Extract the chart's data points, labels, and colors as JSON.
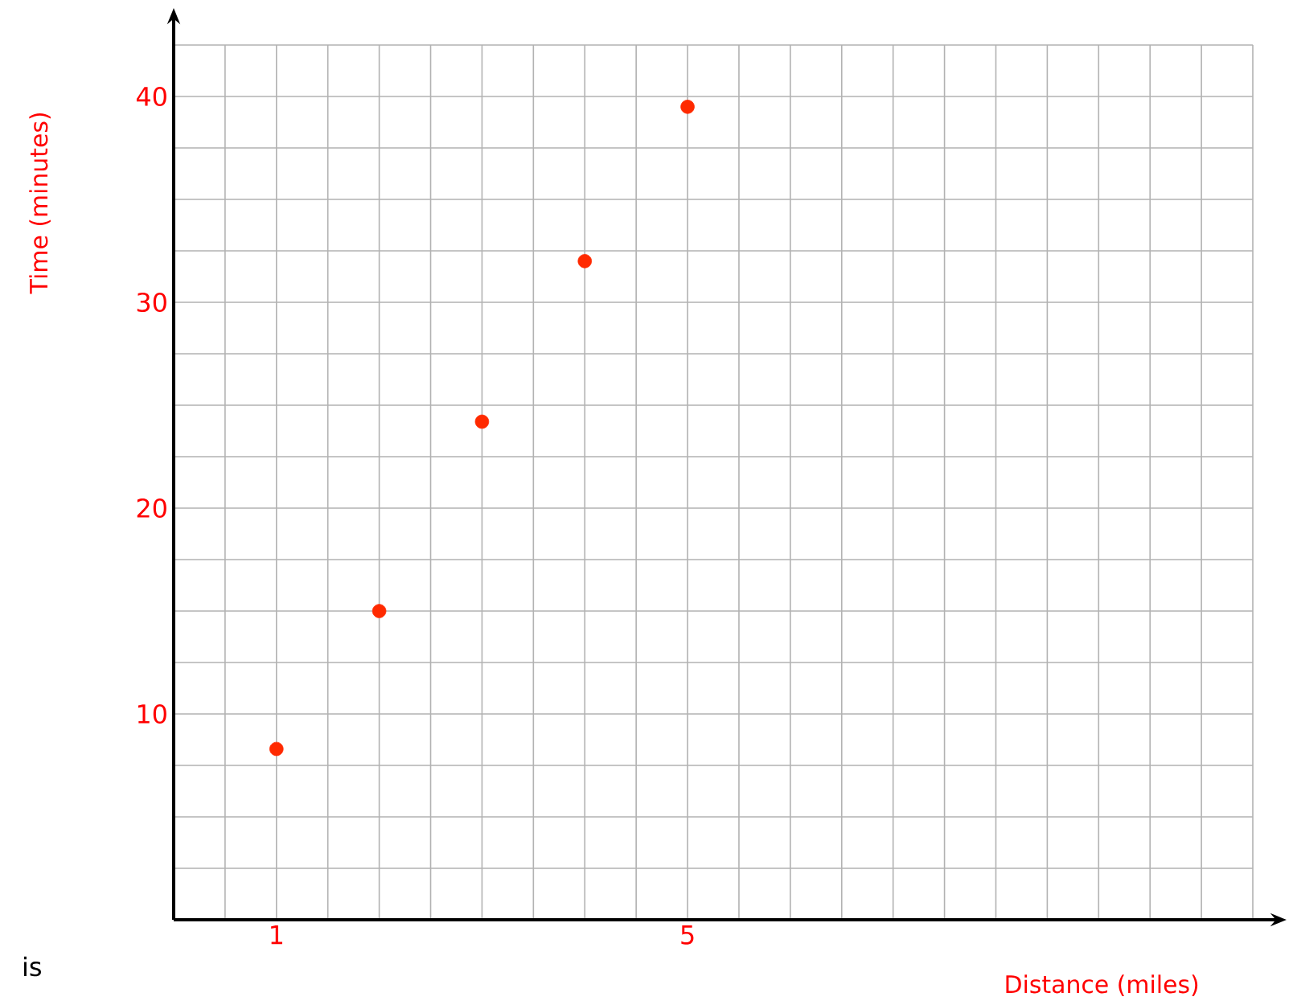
{
  "chart_data": {
    "type": "scatter",
    "xlabel": "Distance (miles)",
    "ylabel": "Time (minutes)",
    "x": [
      1,
      2,
      3,
      4,
      5
    ],
    "series": [
      {
        "color": "#ff2a00",
        "values": [
          8.3,
          15,
          24.2,
          32,
          39.5
        ]
      }
    ],
    "xlim": [
      0,
      10.5
    ],
    "xticks": [
      {
        "value": 0.5,
        "label": null
      },
      1,
      {
        "value": 1.5,
        "label": null
      },
      {
        "value": 2,
        "label": null
      },
      {
        "value": 2.5,
        "label": null
      },
      {
        "value": 3,
        "label": null
      },
      {
        "value": 3.5,
        "label": null
      },
      {
        "value": 4,
        "label": null
      },
      {
        "value": 4.5,
        "label": null
      },
      5,
      {
        "value": 5.5,
        "label": null
      },
      {
        "value": 6,
        "label": null
      },
      {
        "value": 6.5,
        "label": null
      },
      {
        "value": 7,
        "label": null
      },
      {
        "value": 7.5,
        "label": null
      },
      {
        "value": 8,
        "label": null
      },
      {
        "value": 8.5,
        "label": null
      },
      {
        "value": 9,
        "label": null
      },
      {
        "value": 9.5,
        "label": null
      },
      {
        "value": 10,
        "label": null
      },
      {
        "value": 10.5,
        "label": null
      }
    ],
    "ylim": [
      0,
      42.5
    ],
    "yticks": [
      {
        "value": 2.5,
        "label": null
      },
      {
        "value": 5,
        "label": null
      },
      {
        "value": 7.5,
        "label": null
      },
      10,
      {
        "value": 12.5,
        "label": null
      },
      {
        "value": 15,
        "label": null
      },
      {
        "value": 17.5,
        "label": null
      },
      20,
      {
        "value": 22.5,
        "label": null
      },
      {
        "value": 25,
        "label": null
      },
      {
        "value": 27.5,
        "label": null
      },
      30,
      {
        "value": 32.5,
        "label": null
      },
      {
        "value": 35,
        "label": null
      },
      {
        "value": 37.5,
        "label": null
      },
      40,
      {
        "value": 42.5,
        "label": null
      }
    ],
    "grid": true,
    "annotations": [
      "is"
    ]
  }
}
